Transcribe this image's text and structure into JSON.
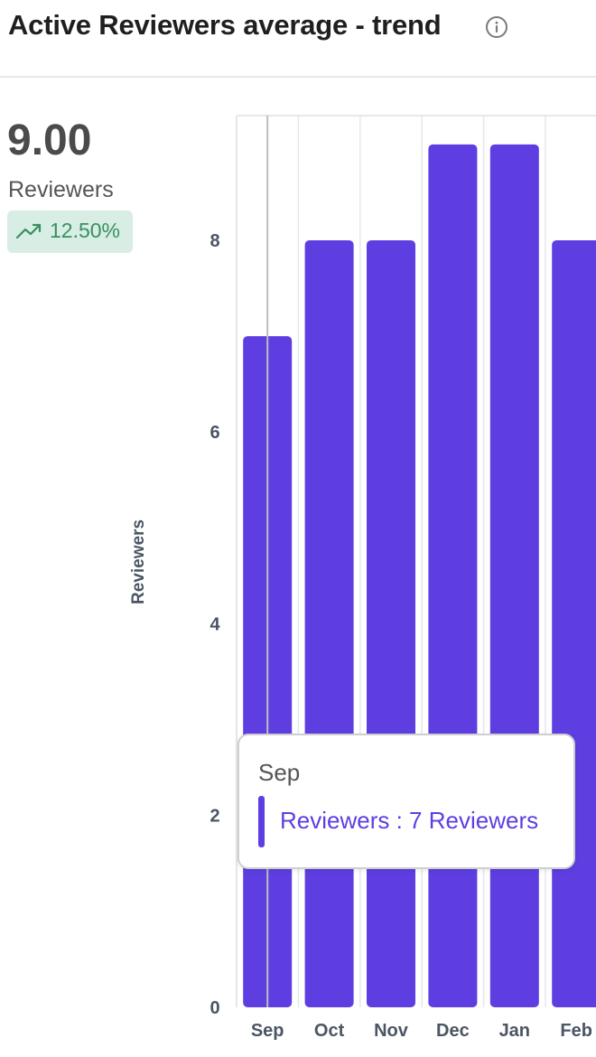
{
  "header": {
    "title": "Active Reviewers average - trend",
    "info_icon": "info-circle-icon"
  },
  "kpi": {
    "value": "9.00",
    "unit": "Reviewers",
    "trend_text": "12.50%",
    "trend_icon": "trending-up-icon",
    "trend_color": "#3a8f61",
    "trend_bg": "#d8eee4"
  },
  "tooltip": {
    "title": "Sep",
    "series_label": "Reviewers",
    "separator": " : ",
    "value_text": "7 Reviewers"
  },
  "colors": {
    "bar": "#5e3ee1",
    "grid": "#e5e7eb"
  },
  "chart_data": {
    "type": "bar",
    "categories": [
      "Sep",
      "Oct",
      "Nov",
      "Dec",
      "Jan",
      "Feb"
    ],
    "series": [
      {
        "name": "Reviewers",
        "values": [
          7,
          8,
          8,
          9,
          9,
          8
        ]
      }
    ],
    "ylabel": "Reviewers",
    "xlabel": "",
    "ylim": [
      0,
      9.3
    ],
    "yticks": [
      0,
      2,
      4,
      6,
      8
    ],
    "grid": true,
    "hover_category": "Sep"
  }
}
